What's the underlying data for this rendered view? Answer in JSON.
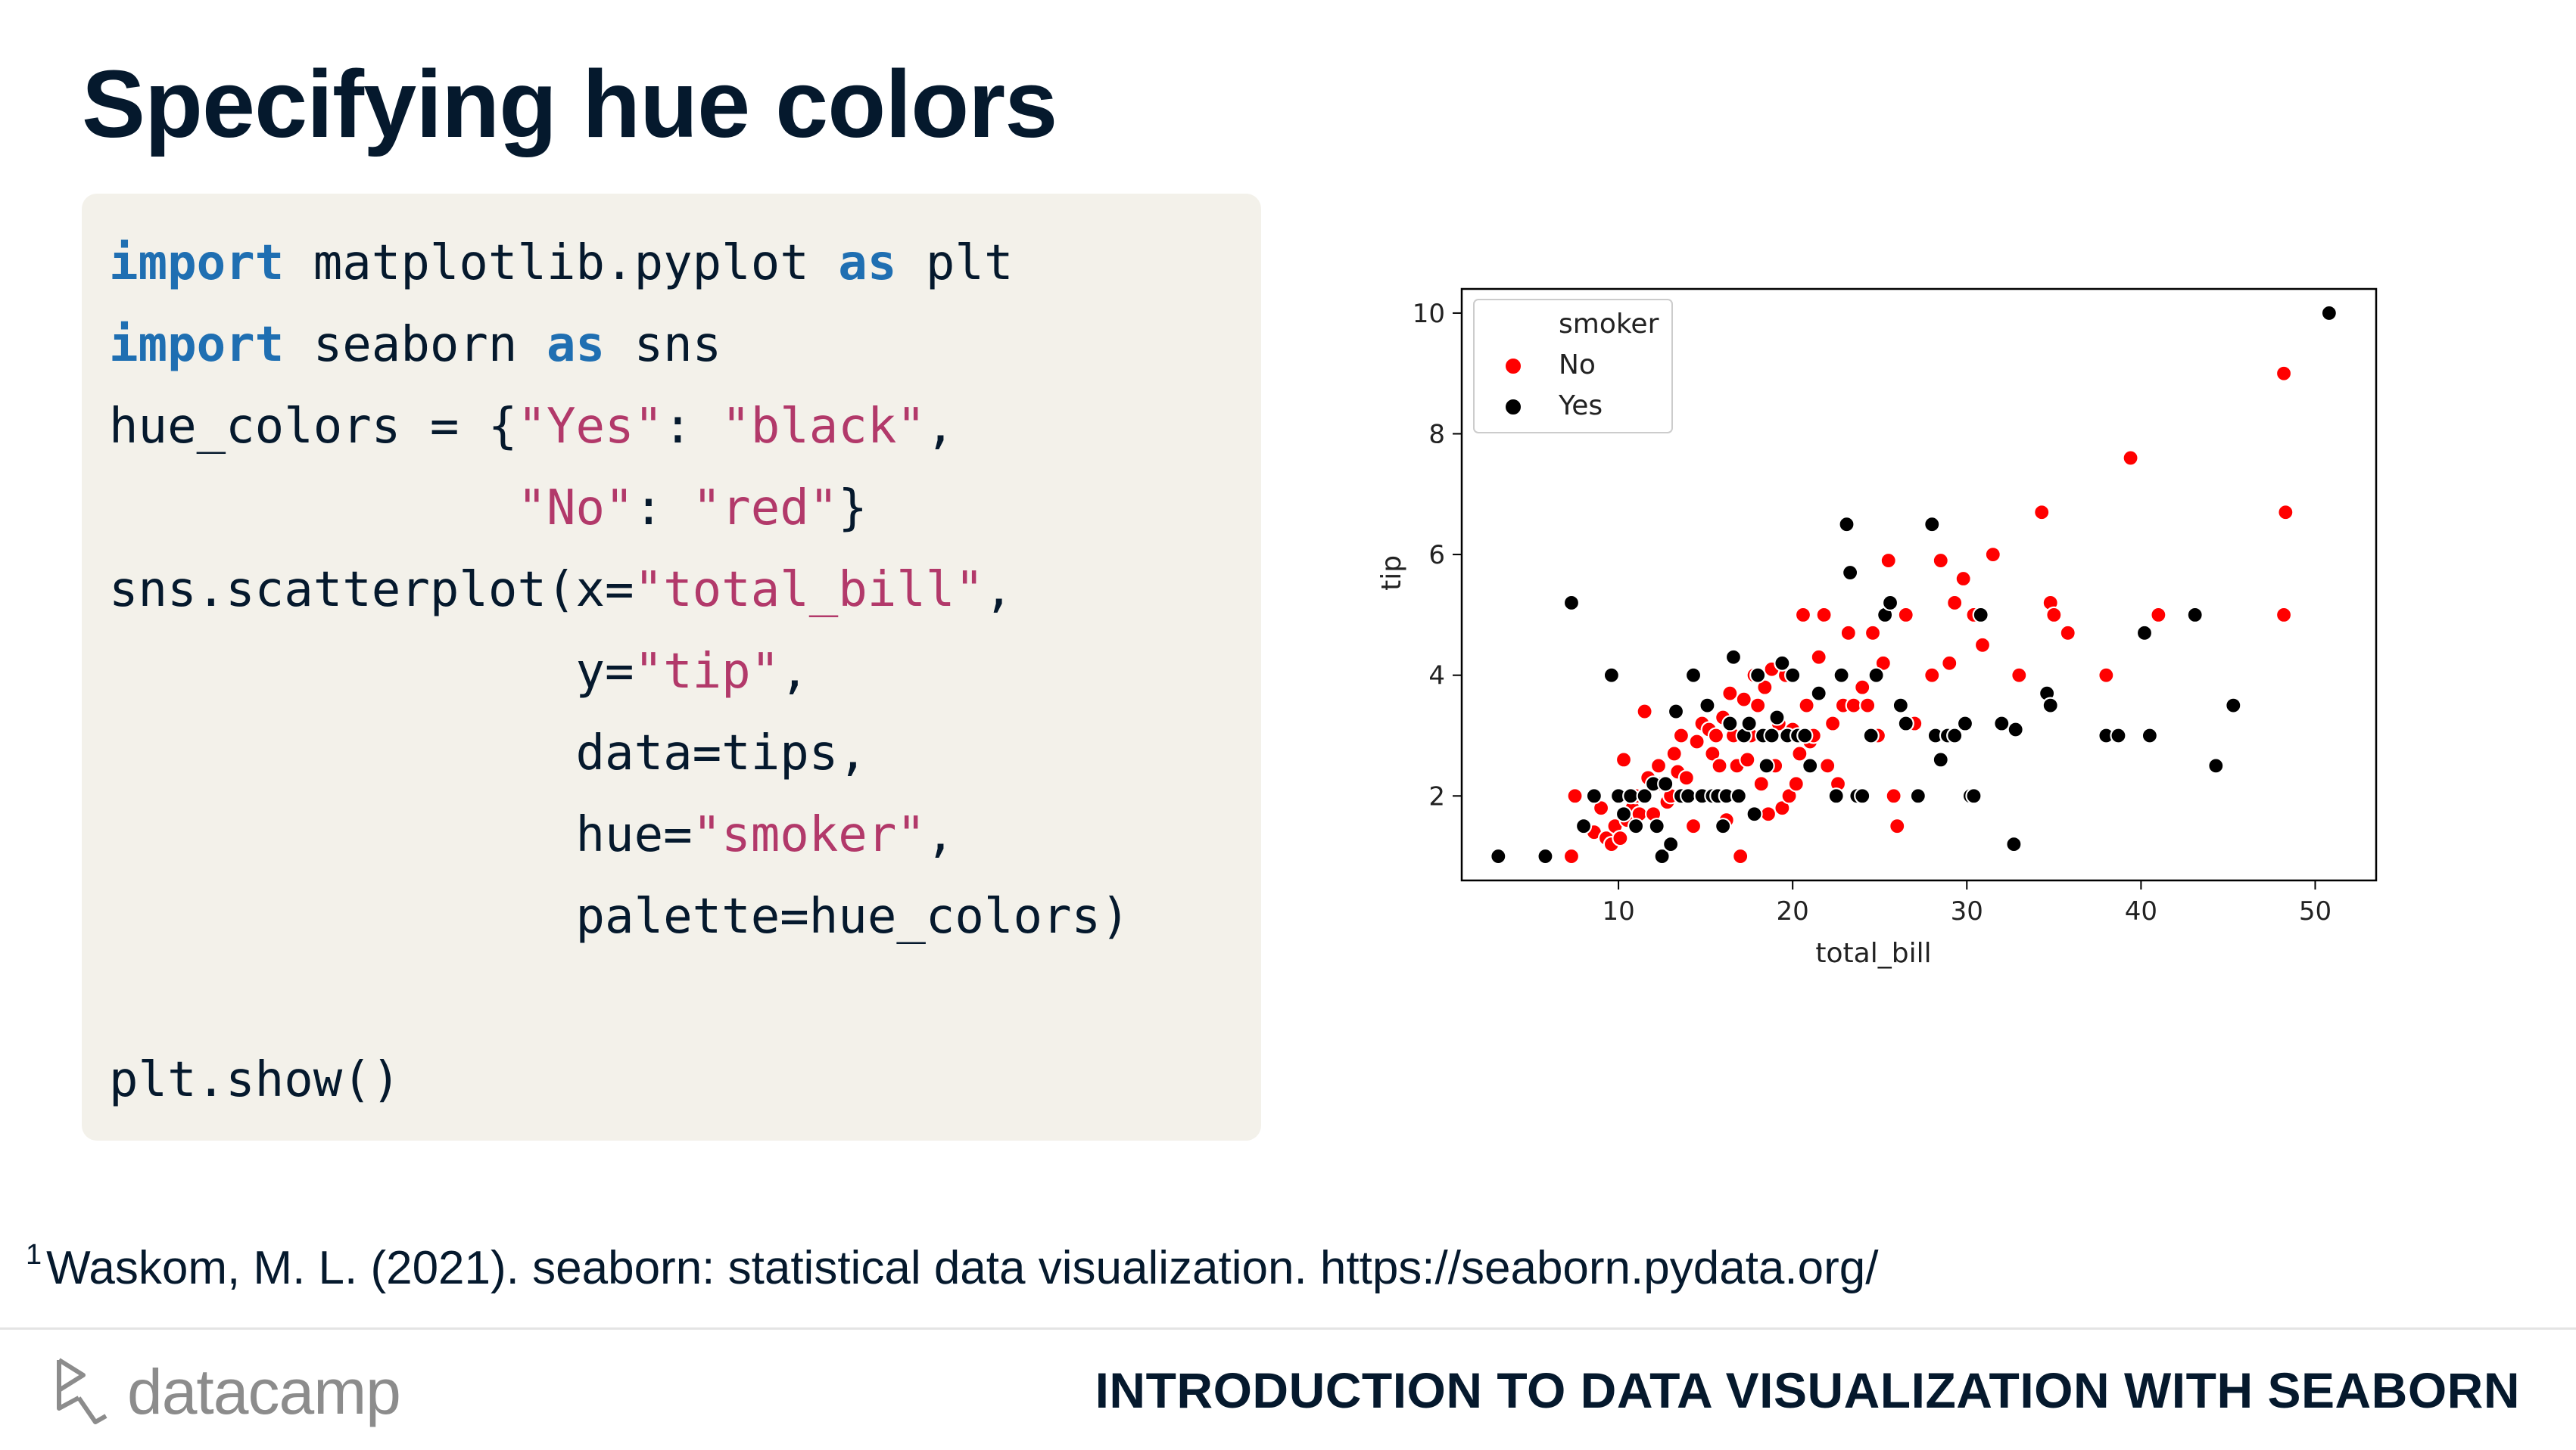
{
  "title": "Specifying hue colors",
  "code": [
    [
      {
        "t": "import",
        "c": "kw"
      },
      {
        "t": " matplotlib.pyplot "
      },
      {
        "t": "as",
        "c": "kw"
      },
      {
        "t": " plt"
      }
    ],
    [
      {
        "t": "import",
        "c": "kw"
      },
      {
        "t": " seaborn "
      },
      {
        "t": "as",
        "c": "kw"
      },
      {
        "t": " sns"
      }
    ],
    [
      {
        "t": "hue_colors = {"
      },
      {
        "t": "\"Yes\"",
        "c": "str"
      },
      {
        "t": ": "
      },
      {
        "t": "\"black\"",
        "c": "str"
      },
      {
        "t": ","
      }
    ],
    [
      {
        "t": "              "
      },
      {
        "t": "\"No\"",
        "c": "str"
      },
      {
        "t": ": "
      },
      {
        "t": "\"red\"",
        "c": "str"
      },
      {
        "t": "}"
      }
    ],
    [
      {
        "t": "sns.scatterplot(x="
      },
      {
        "t": "\"total_bill\"",
        "c": "str"
      },
      {
        "t": ","
      }
    ],
    [
      {
        "t": "                y="
      },
      {
        "t": "\"tip\"",
        "c": "str"
      },
      {
        "t": ","
      }
    ],
    [
      {
        "t": "                data=tips,"
      }
    ],
    [
      {
        "t": "                hue="
      },
      {
        "t": "\"smoker\"",
        "c": "str"
      },
      {
        "t": ","
      }
    ],
    [
      {
        "t": "                palette=hue_colors)"
      }
    ],
    [
      {
        "t": ""
      }
    ],
    [
      {
        "t": "plt.show()"
      }
    ]
  ],
  "footnote": {
    "marker": "1",
    "text": "Waskom, M. L. (2021). seaborn: statistical data visualization. https://seaborn.pydata.org/"
  },
  "footer": {
    "brand": "datacamp",
    "course": "INTRODUCTION TO DATA VISUALIZATION WITH SEABORN"
  },
  "chart_data": {
    "type": "scatter",
    "xlabel": "total_bill",
    "ylabel": "tip",
    "xlim": [
      1,
      53.5
    ],
    "ylim": [
      0.6,
      10.4
    ],
    "xticks": [
      10,
      20,
      30,
      40,
      50
    ],
    "yticks": [
      2,
      4,
      6,
      8,
      10
    ],
    "grid": false,
    "legend": {
      "title": "smoker",
      "placement": "top-left"
    },
    "series": [
      {
        "name": "No",
        "color": "#ff0000",
        "points": [
          [
            7.3,
            1.0
          ],
          [
            7.5,
            2.0
          ],
          [
            8.6,
            1.4
          ],
          [
            9.0,
            1.8
          ],
          [
            9.3,
            1.3
          ],
          [
            9.6,
            1.2
          ],
          [
            9.8,
            1.5
          ],
          [
            10.1,
            1.3
          ],
          [
            10.3,
            2.6
          ],
          [
            10.5,
            1.6
          ],
          [
            10.8,
            1.8
          ],
          [
            11.0,
            2.0
          ],
          [
            11.2,
            1.7
          ],
          [
            11.5,
            3.4
          ],
          [
            11.7,
            2.3
          ],
          [
            12.0,
            1.7
          ],
          [
            12.3,
            2.5
          ],
          [
            12.5,
            2.2
          ],
          [
            12.8,
            1.9
          ],
          [
            13.0,
            2.0
          ],
          [
            13.2,
            2.7
          ],
          [
            13.4,
            2.4
          ],
          [
            13.6,
            3.0
          ],
          [
            13.9,
            2.3
          ],
          [
            14.1,
            2.0
          ],
          [
            14.3,
            1.5
          ],
          [
            14.5,
            2.9
          ],
          [
            14.8,
            3.2
          ],
          [
            15.0,
            2.0
          ],
          [
            15.2,
            3.1
          ],
          [
            15.4,
            2.7
          ],
          [
            15.6,
            3.0
          ],
          [
            15.8,
            2.5
          ],
          [
            16.0,
            3.3
          ],
          [
            16.2,
            1.6
          ],
          [
            16.4,
            3.7
          ],
          [
            16.6,
            3.0
          ],
          [
            16.8,
            2.5
          ],
          [
            17.0,
            1.0
          ],
          [
            17.2,
            3.6
          ],
          [
            17.4,
            2.6
          ],
          [
            17.6,
            3.0
          ],
          [
            17.8,
            4.0
          ],
          [
            18.0,
            3.5
          ],
          [
            18.2,
            2.2
          ],
          [
            18.4,
            3.8
          ],
          [
            18.6,
            1.7
          ],
          [
            18.8,
            4.1
          ],
          [
            19.0,
            2.5
          ],
          [
            19.2,
            3.2
          ],
          [
            19.4,
            1.8
          ],
          [
            19.6,
            4.0
          ],
          [
            19.8,
            2.0
          ],
          [
            20.0,
            3.1
          ],
          [
            20.2,
            2.2
          ],
          [
            20.4,
            2.7
          ],
          [
            20.6,
            5.0
          ],
          [
            20.8,
            3.5
          ],
          [
            21.0,
            2.9
          ],
          [
            21.2,
            3.0
          ],
          [
            21.5,
            4.3
          ],
          [
            21.8,
            5.0
          ],
          [
            22.0,
            2.5
          ],
          [
            22.3,
            3.2
          ],
          [
            22.6,
            2.2
          ],
          [
            22.9,
            3.5
          ],
          [
            23.2,
            4.7
          ],
          [
            23.5,
            3.5
          ],
          [
            23.8,
            2.0
          ],
          [
            24.0,
            3.8
          ],
          [
            24.3,
            3.5
          ],
          [
            24.6,
            4.7
          ],
          [
            24.9,
            3.0
          ],
          [
            25.2,
            4.2
          ],
          [
            25.5,
            5.9
          ],
          [
            25.8,
            2.0
          ],
          [
            26.0,
            1.5
          ],
          [
            26.5,
            5.0
          ],
          [
            27.0,
            3.2
          ],
          [
            28.0,
            4.0
          ],
          [
            28.5,
            5.9
          ],
          [
            29.0,
            4.2
          ],
          [
            29.3,
            5.2
          ],
          [
            29.8,
            5.6
          ],
          [
            30.4,
            5.0
          ],
          [
            30.9,
            4.5
          ],
          [
            31.5,
            6.0
          ],
          [
            33.0,
            4.0
          ],
          [
            34.3,
            6.7
          ],
          [
            34.8,
            5.2
          ],
          [
            35.0,
            5.0
          ],
          [
            35.8,
            4.7
          ],
          [
            38.0,
            4.0
          ],
          [
            39.4,
            7.6
          ],
          [
            41.0,
            5.0
          ],
          [
            48.2,
            9.0
          ],
          [
            48.3,
            6.7
          ],
          [
            48.2,
            5.0
          ]
        ]
      },
      {
        "name": "Yes",
        "color": "#000000",
        "points": [
          [
            3.1,
            1.0
          ],
          [
            5.8,
            1.0
          ],
          [
            7.3,
            5.2
          ],
          [
            8.0,
            1.5
          ],
          [
            8.6,
            2.0
          ],
          [
            9.6,
            4.0
          ],
          [
            10.0,
            2.0
          ],
          [
            10.3,
            1.7
          ],
          [
            10.7,
            2.0
          ],
          [
            11.0,
            1.5
          ],
          [
            11.5,
            2.0
          ],
          [
            12.0,
            2.2
          ],
          [
            12.2,
            1.5
          ],
          [
            12.5,
            1.0
          ],
          [
            12.7,
            2.2
          ],
          [
            13.0,
            1.2
          ],
          [
            13.3,
            3.4
          ],
          [
            13.6,
            2.0
          ],
          [
            14.0,
            2.0
          ],
          [
            14.3,
            4.0
          ],
          [
            14.8,
            2.0
          ],
          [
            15.1,
            3.5
          ],
          [
            15.4,
            2.0
          ],
          [
            15.7,
            2.0
          ],
          [
            16.0,
            1.5
          ],
          [
            16.2,
            2.0
          ],
          [
            16.4,
            3.2
          ],
          [
            16.6,
            4.3
          ],
          [
            16.9,
            2.0
          ],
          [
            17.2,
            3.0
          ],
          [
            17.5,
            3.2
          ],
          [
            17.8,
            1.7
          ],
          [
            18.0,
            4.0
          ],
          [
            18.3,
            3.0
          ],
          [
            18.5,
            2.5
          ],
          [
            18.8,
            3.0
          ],
          [
            19.1,
            3.3
          ],
          [
            19.4,
            4.2
          ],
          [
            19.7,
            3.0
          ],
          [
            20.0,
            4.0
          ],
          [
            20.3,
            3.0
          ],
          [
            20.7,
            3.0
          ],
          [
            21.0,
            2.5
          ],
          [
            21.5,
            3.7
          ],
          [
            22.5,
            2.0
          ],
          [
            22.8,
            4.0
          ],
          [
            23.1,
            6.5
          ],
          [
            23.3,
            5.7
          ],
          [
            23.7,
            2.0
          ],
          [
            24.0,
            2.0
          ],
          [
            24.5,
            3.0
          ],
          [
            24.8,
            4.0
          ],
          [
            25.3,
            5.0
          ],
          [
            25.6,
            5.2
          ],
          [
            26.2,
            3.5
          ],
          [
            26.5,
            3.2
          ],
          [
            27.2,
            2.0
          ],
          [
            28.0,
            6.5
          ],
          [
            28.2,
            3.0
          ],
          [
            28.5,
            2.6
          ],
          [
            28.9,
            3.0
          ],
          [
            29.3,
            3.0
          ],
          [
            29.9,
            3.2
          ],
          [
            30.2,
            2.0
          ],
          [
            30.4,
            2.0
          ],
          [
            30.8,
            5.0
          ],
          [
            32.0,
            3.2
          ],
          [
            32.7,
            1.2
          ],
          [
            32.8,
            3.1
          ],
          [
            34.6,
            3.7
          ],
          [
            34.8,
            3.5
          ],
          [
            38.0,
            3.0
          ],
          [
            38.7,
            3.0
          ],
          [
            40.2,
            4.7
          ],
          [
            40.5,
            3.0
          ],
          [
            43.1,
            5.0
          ],
          [
            44.3,
            2.5
          ],
          [
            45.3,
            3.5
          ],
          [
            50.8,
            10.0
          ]
        ]
      }
    ]
  }
}
